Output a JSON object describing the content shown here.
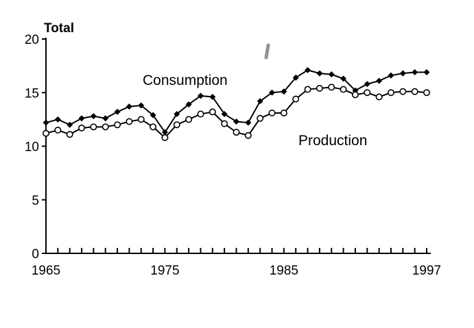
{
  "chart_data": {
    "type": "line",
    "title": "",
    "ylabel": "Total",
    "xlabel": "",
    "ylim": [
      0,
      20
    ],
    "xlim": [
      1965,
      1997
    ],
    "yticks": [
      0,
      5,
      10,
      15,
      20
    ],
    "ytick_labels": [
      "0",
      "5",
      "10",
      "15",
      "20"
    ],
    "xtick_labels": [
      "1965",
      "1975",
      "1985",
      "1997"
    ],
    "xtick_values": [
      1965,
      1975,
      1985,
      1997
    ],
    "minor_x_ticks_every": 1,
    "x": [
      1965,
      1966,
      1967,
      1968,
      1969,
      1970,
      1971,
      1972,
      1973,
      1974,
      1975,
      1976,
      1977,
      1978,
      1979,
      1980,
      1981,
      1982,
      1983,
      1984,
      1985,
      1986,
      1987,
      1988,
      1989,
      1990,
      1991,
      1992,
      1993,
      1994,
      1995,
      1996,
      1997
    ],
    "series": [
      {
        "name": "Consumption",
        "marker": "filled-diamond",
        "values": [
          12.2,
          12.5,
          12.0,
          12.6,
          12.8,
          12.6,
          13.2,
          13.7,
          13.8,
          12.9,
          11.3,
          13.0,
          13.9,
          14.7,
          14.6,
          13.0,
          12.3,
          12.2,
          14.2,
          15.0,
          15.1,
          16.4,
          17.1,
          16.8,
          16.7,
          16.3,
          15.2,
          15.8,
          16.1,
          16.6,
          16.8,
          16.9,
          16.9
        ]
      },
      {
        "name": "Production",
        "marker": "open-circle",
        "values": [
          11.2,
          11.5,
          11.1,
          11.7,
          11.8,
          11.8,
          12.0,
          12.3,
          12.5,
          11.8,
          10.8,
          12.0,
          12.5,
          13.0,
          13.2,
          12.1,
          11.3,
          11.0,
          12.6,
          13.1,
          13.1,
          14.4,
          15.3,
          15.4,
          15.5,
          15.3,
          14.8,
          15.0,
          14.6,
          15.0,
          15.1,
          15.1,
          15.0
        ]
      }
    ]
  }
}
